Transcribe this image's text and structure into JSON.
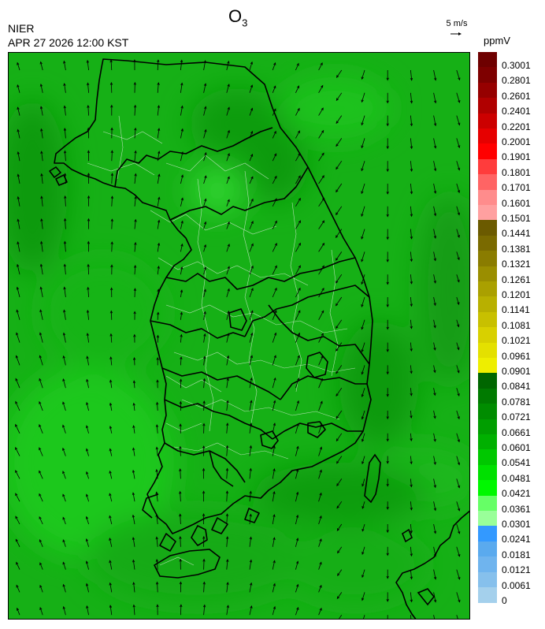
{
  "header": {
    "agency": "NIER",
    "datetime": "APR 27 2026 12:00 KST",
    "species": "O",
    "species_sub": "3",
    "ref_vector_label": "5 m/s",
    "unit": "ppmV"
  },
  "legend": {
    "labels": [
      "0.3001",
      "0.2801",
      "0.2601",
      "0.2401",
      "0.2201",
      "0.2001",
      "0.1901",
      "0.1801",
      "0.1701",
      "0.1601",
      "0.1501",
      "0.1441",
      "0.1381",
      "0.1321",
      "0.1261",
      "0.1201",
      "0.1141",
      "0.1081",
      "0.1021",
      "0.0961",
      "0.0901",
      "0.0841",
      "0.0781",
      "0.0721",
      "0.0661",
      "0.0601",
      "0.0541",
      "0.0481",
      "0.0421",
      "0.0361",
      "0.0301",
      "0.0241",
      "0.0181",
      "0.0121",
      "0.0061",
      "0"
    ],
    "colors": [
      "#6e0000",
      "#7e0000",
      "#960000",
      "#b00000",
      "#cc0000",
      "#e60000",
      "#ff0000",
      "#ff3c3c",
      "#ff6464",
      "#ff8c8c",
      "#ffa0a0",
      "#6b5a00",
      "#7a6a00",
      "#8a7c00",
      "#9a8e00",
      "#aaa000",
      "#b8b000",
      "#c8c000",
      "#d8d000",
      "#e4e000",
      "#eeee00",
      "#006600",
      "#007a00",
      "#008c00",
      "#009e00",
      "#00b000",
      "#00c800",
      "#00e000",
      "#00f800",
      "#66ff66",
      "#99ff99",
      "#3399ff",
      "#5aaaee",
      "#6fb4ee",
      "#86c0ec",
      "#a4d0ec"
    ]
  },
  "map": {
    "background_color": "#16b016",
    "arrow_color": "#000000",
    "coast_color": "#000000",
    "boundary_color": "#cfe8cf"
  }
}
